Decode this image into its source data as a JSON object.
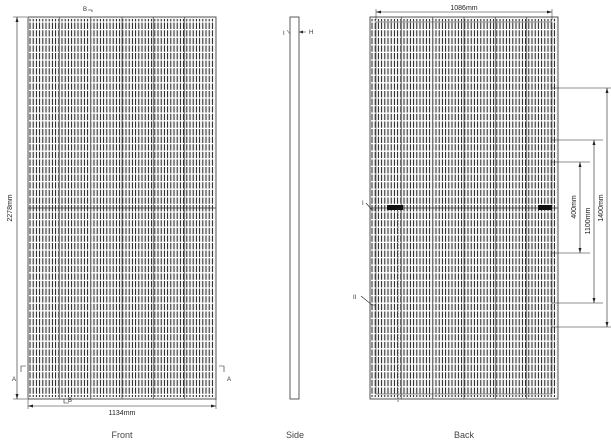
{
  "labels": {
    "front_caption": "Front",
    "side_caption": "Side",
    "back_caption": "Back",
    "front_width": "1134mm",
    "front_height": "2278mm",
    "back_width": "1086mm",
    "mount_400": "400mm",
    "mount_1100": "1100mm",
    "mount_1400": "1400mm",
    "mark_a_left": "A",
    "mark_a_right": "A",
    "mark_b_top": "B",
    "mark_b_bottom": "B",
    "mark_h": "H",
    "mark_i_side": "I",
    "mark_i_back": "I",
    "mark_ii_back": "II"
  },
  "panel": {
    "line_color": "#111111",
    "frame_color": "#555555"
  }
}
